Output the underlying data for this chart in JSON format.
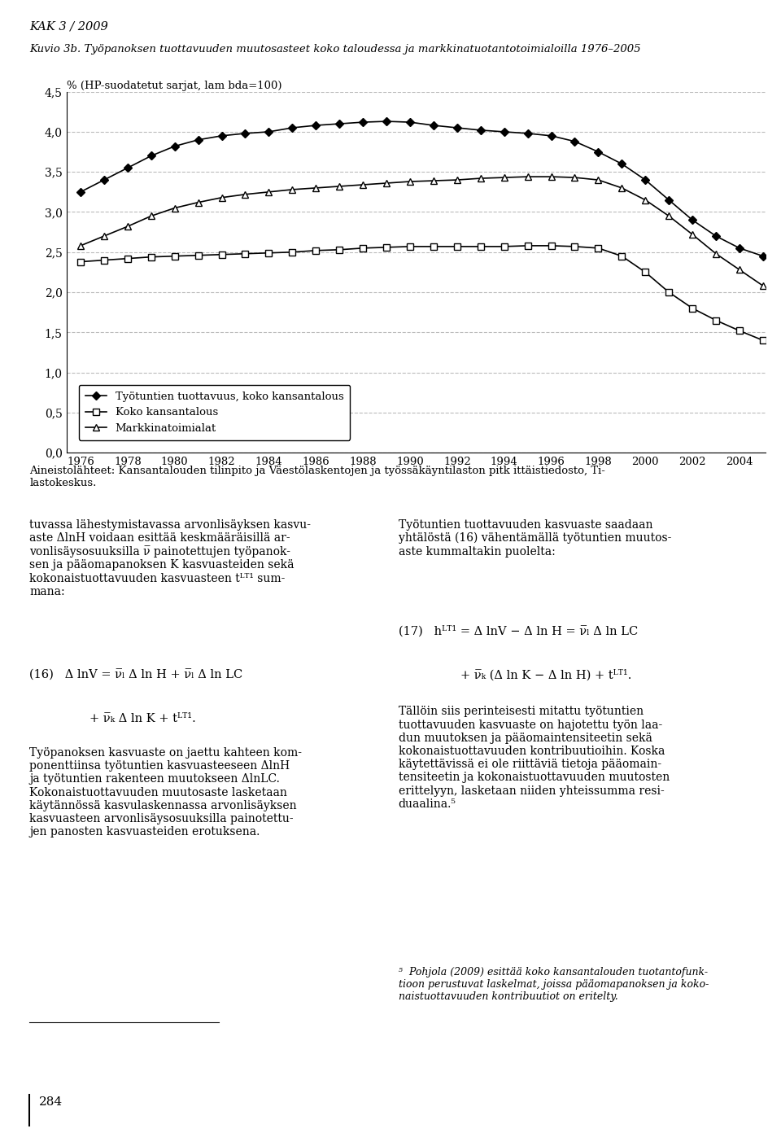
{
  "title": "Kuvio 3b. Työpanoksen tuottavuuden muutosasteet koko taloudessa ja markkinatuotantotoimialoilla 1976–2005",
  "header": "KAK 3 / 2009",
  "ylabel": "% (HP-suodatetut sarjat, lam bda=100)",
  "years": [
    1976,
    1977,
    1978,
    1979,
    1980,
    1981,
    1982,
    1983,
    1984,
    1985,
    1986,
    1987,
    1988,
    1989,
    1990,
    1991,
    1992,
    1993,
    1994,
    1995,
    1996,
    1997,
    1998,
    1999,
    2000,
    2001,
    2002,
    2003,
    2004,
    2005
  ],
  "series1_diamond": [
    3.25,
    3.4,
    3.55,
    3.7,
    3.82,
    3.9,
    3.95,
    3.98,
    4.0,
    4.05,
    4.08,
    4.1,
    4.12,
    4.13,
    4.12,
    4.08,
    4.05,
    4.02,
    4.0,
    3.98,
    3.95,
    3.88,
    3.75,
    3.6,
    3.4,
    3.15,
    2.9,
    2.7,
    2.55,
    2.45
  ],
  "series2_square": [
    2.38,
    2.4,
    2.42,
    2.44,
    2.45,
    2.46,
    2.47,
    2.48,
    2.49,
    2.5,
    2.52,
    2.53,
    2.55,
    2.56,
    2.57,
    2.57,
    2.57,
    2.57,
    2.57,
    2.58,
    2.58,
    2.57,
    2.55,
    2.45,
    2.25,
    2.0,
    1.8,
    1.65,
    1.52,
    1.4
  ],
  "series3_triangle": [
    2.58,
    2.7,
    2.82,
    2.95,
    3.05,
    3.12,
    3.18,
    3.22,
    3.25,
    3.28,
    3.3,
    3.32,
    3.34,
    3.36,
    3.38,
    3.39,
    3.4,
    3.42,
    3.43,
    3.44,
    3.44,
    3.43,
    3.4,
    3.3,
    3.15,
    2.95,
    2.72,
    2.48,
    2.28,
    2.08
  ],
  "legend_labels": [
    "Työtuntien tuottavuus, koko kansantalous",
    "Koko kansantalous",
    "Markkinatoimialat"
  ],
  "ylim": [
    0.0,
    4.5
  ],
  "yticks": [
    0.0,
    0.5,
    1.0,
    1.5,
    2.0,
    2.5,
    3.0,
    3.5,
    4.0,
    4.5
  ],
  "xtick_labels": [
    "1976",
    "1978",
    "1980",
    "1982",
    "1984",
    "1986",
    "1988",
    "1990",
    "1992",
    "1994",
    "1996",
    "1998",
    "2000",
    "2002",
    "2004"
  ],
  "xtick_years": [
    1976,
    1978,
    1980,
    1982,
    1984,
    1986,
    1988,
    1990,
    1992,
    1994,
    1996,
    1998,
    2000,
    2002,
    2004
  ],
  "background_color": "#ffffff",
  "line_color": "#000000",
  "grid_color": "#bbbbbb",
  "grid_style": "--"
}
